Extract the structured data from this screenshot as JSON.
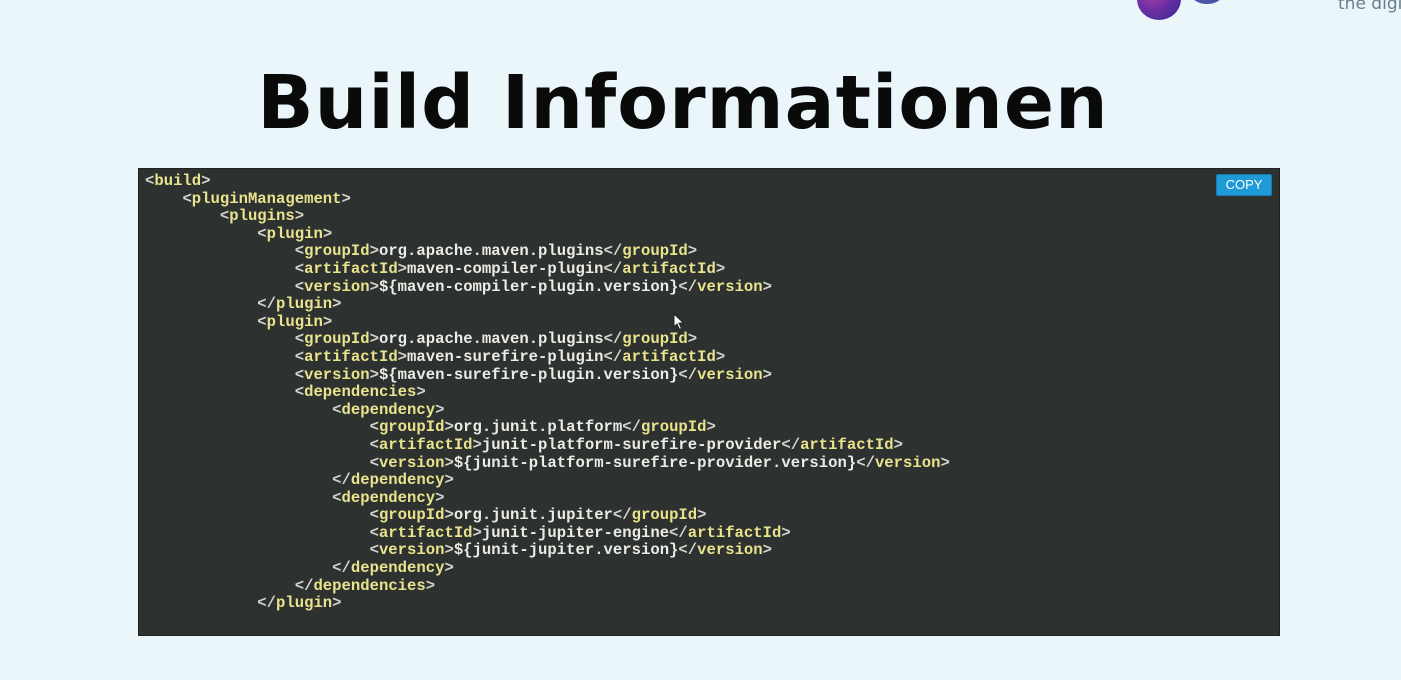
{
  "header": {
    "tagline": "the digi"
  },
  "slide": {
    "title": "Build Informationen"
  },
  "code_panel": {
    "copy_label": "COPY",
    "lines": [
      {
        "level": 0,
        "parts": [
          [
            "p",
            "<"
          ],
          [
            "t",
            "build"
          ],
          [
            "p",
            ">"
          ]
        ]
      },
      {
        "level": 1,
        "parts": [
          [
            "p",
            "<"
          ],
          [
            "t",
            "pluginManagement"
          ],
          [
            "p",
            ">"
          ]
        ]
      },
      {
        "level": 2,
        "parts": [
          [
            "p",
            "<"
          ],
          [
            "t",
            "plugins"
          ],
          [
            "p",
            ">"
          ]
        ]
      },
      {
        "level": 3,
        "parts": [
          [
            "p",
            "<"
          ],
          [
            "t",
            "plugin"
          ],
          [
            "p",
            ">"
          ]
        ]
      },
      {
        "level": 4,
        "parts": [
          [
            "p",
            "<"
          ],
          [
            "t",
            "groupId"
          ],
          [
            "p",
            ">"
          ],
          [
            "x",
            "org.apache.maven.plugins"
          ],
          [
            "p",
            "</"
          ],
          [
            "t",
            "groupId"
          ],
          [
            "p",
            ">"
          ]
        ]
      },
      {
        "level": 4,
        "parts": [
          [
            "p",
            "<"
          ],
          [
            "t",
            "artifactId"
          ],
          [
            "p",
            ">"
          ],
          [
            "x",
            "maven-compiler-plugin"
          ],
          [
            "p",
            "</"
          ],
          [
            "t",
            "artifactId"
          ],
          [
            "p",
            ">"
          ]
        ]
      },
      {
        "level": 4,
        "parts": [
          [
            "p",
            "<"
          ],
          [
            "t",
            "version"
          ],
          [
            "p",
            ">"
          ],
          [
            "x",
            "${maven-compiler-plugin.version}"
          ],
          [
            "p",
            "</"
          ],
          [
            "t",
            "version"
          ],
          [
            "p",
            ">"
          ]
        ]
      },
      {
        "level": 3,
        "parts": [
          [
            "p",
            "</"
          ],
          [
            "t",
            "plugin"
          ],
          [
            "p",
            ">"
          ]
        ]
      },
      {
        "level": 3,
        "parts": [
          [
            "p",
            "<"
          ],
          [
            "t",
            "plugin"
          ],
          [
            "p",
            ">"
          ]
        ]
      },
      {
        "level": 4,
        "parts": [
          [
            "p",
            "<"
          ],
          [
            "t",
            "groupId"
          ],
          [
            "p",
            ">"
          ],
          [
            "x",
            "org.apache.maven.plugins"
          ],
          [
            "p",
            "</"
          ],
          [
            "t",
            "groupId"
          ],
          [
            "p",
            ">"
          ]
        ]
      },
      {
        "level": 4,
        "parts": [
          [
            "p",
            "<"
          ],
          [
            "t",
            "artifactId"
          ],
          [
            "p",
            ">"
          ],
          [
            "x",
            "maven-surefire-plugin"
          ],
          [
            "p",
            "</"
          ],
          [
            "t",
            "artifactId"
          ],
          [
            "p",
            ">"
          ]
        ]
      },
      {
        "level": 4,
        "parts": [
          [
            "p",
            "<"
          ],
          [
            "t",
            "version"
          ],
          [
            "p",
            ">"
          ],
          [
            "x",
            "${maven-surefire-plugin.version}"
          ],
          [
            "p",
            "</"
          ],
          [
            "t",
            "version"
          ],
          [
            "p",
            ">"
          ]
        ]
      },
      {
        "level": 4,
        "parts": [
          [
            "p",
            "<"
          ],
          [
            "t",
            "dependencies"
          ],
          [
            "p",
            ">"
          ]
        ]
      },
      {
        "level": 5,
        "parts": [
          [
            "p",
            "<"
          ],
          [
            "t",
            "dependency"
          ],
          [
            "p",
            ">"
          ]
        ]
      },
      {
        "level": 6,
        "parts": [
          [
            "p",
            "<"
          ],
          [
            "t",
            "groupId"
          ],
          [
            "p",
            ">"
          ],
          [
            "x",
            "org.junit.platform"
          ],
          [
            "p",
            "</"
          ],
          [
            "t",
            "groupId"
          ],
          [
            "p",
            ">"
          ]
        ]
      },
      {
        "level": 6,
        "parts": [
          [
            "p",
            "<"
          ],
          [
            "t",
            "artifactId"
          ],
          [
            "p",
            ">"
          ],
          [
            "x",
            "junit-platform-surefire-provider"
          ],
          [
            "p",
            "</"
          ],
          [
            "t",
            "artifactId"
          ],
          [
            "p",
            ">"
          ]
        ]
      },
      {
        "level": 6,
        "parts": [
          [
            "p",
            "<"
          ],
          [
            "t",
            "version"
          ],
          [
            "p",
            ">"
          ],
          [
            "x",
            "${junit-platform-surefire-provider.version}"
          ],
          [
            "p",
            "</"
          ],
          [
            "t",
            "version"
          ],
          [
            "p",
            ">"
          ]
        ]
      },
      {
        "level": 5,
        "parts": [
          [
            "p",
            "</"
          ],
          [
            "t",
            "dependency"
          ],
          [
            "p",
            ">"
          ]
        ]
      },
      {
        "level": 5,
        "parts": [
          [
            "p",
            "<"
          ],
          [
            "t",
            "dependency"
          ],
          [
            "p",
            ">"
          ]
        ]
      },
      {
        "level": 6,
        "parts": [
          [
            "p",
            "<"
          ],
          [
            "t",
            "groupId"
          ],
          [
            "p",
            ">"
          ],
          [
            "x",
            "org.junit.jupiter"
          ],
          [
            "p",
            "</"
          ],
          [
            "t",
            "groupId"
          ],
          [
            "p",
            ">"
          ]
        ]
      },
      {
        "level": 6,
        "parts": [
          [
            "p",
            "<"
          ],
          [
            "t",
            "artifactId"
          ],
          [
            "p",
            ">"
          ],
          [
            "x",
            "junit-jupiter-engine"
          ],
          [
            "p",
            "</"
          ],
          [
            "t",
            "artifactId"
          ],
          [
            "p",
            ">"
          ]
        ]
      },
      {
        "level": 6,
        "parts": [
          [
            "p",
            "<"
          ],
          [
            "t",
            "version"
          ],
          [
            "p",
            ">"
          ],
          [
            "x",
            "${junit-jupiter.version}"
          ],
          [
            "p",
            "</"
          ],
          [
            "t",
            "version"
          ],
          [
            "p",
            ">"
          ]
        ]
      },
      {
        "level": 5,
        "parts": [
          [
            "p",
            "</"
          ],
          [
            "t",
            "dependency"
          ],
          [
            "p",
            ">"
          ]
        ]
      },
      {
        "level": 4,
        "parts": [
          [
            "p",
            "</"
          ],
          [
            "t",
            "dependencies"
          ],
          [
            "p",
            ">"
          ]
        ]
      },
      {
        "level": 3,
        "parts": [
          [
            "p",
            "</"
          ],
          [
            "t",
            "plugin"
          ],
          [
            "p",
            ">"
          ]
        ]
      }
    ]
  },
  "colors": {
    "page_background": "#eaf6fa",
    "code_background": "#2d312f",
    "tag_name": "#e9e38e",
    "punctuation": "#d4d4ce",
    "text_content": "#ecece6",
    "copy_button": "#1e9bd7"
  },
  "icons": {
    "cursor": "mouse-pointer-icon",
    "logo": "brand-logo-icon"
  }
}
